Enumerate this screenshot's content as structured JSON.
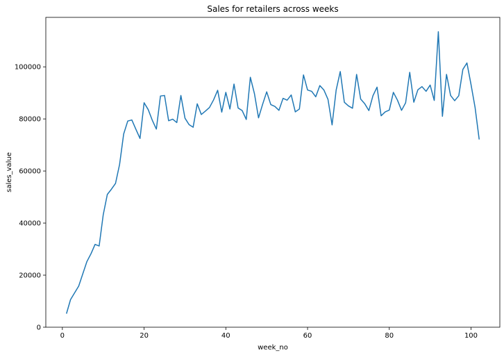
{
  "chart_data": {
    "type": "line",
    "title": "Sales for retailers across weeks",
    "xlabel": "week_no",
    "ylabel": "sales_value",
    "xlim": [
      -4.05,
      107.05
    ],
    "ylim": [
      0,
      119000
    ],
    "xticks": [
      0,
      20,
      40,
      60,
      80,
      100
    ],
    "yticks": [
      0,
      20000,
      40000,
      60000,
      80000,
      100000
    ],
    "grid": false,
    "line_color": "#1f77b4",
    "series": [
      {
        "x": [
          1,
          2,
          3,
          4,
          5,
          6,
          7,
          8,
          9,
          10,
          11,
          12,
          13,
          14,
          15,
          16,
          17,
          18,
          19,
          20,
          21,
          22,
          23,
          24,
          25,
          26,
          27,
          28,
          29,
          30,
          31,
          32,
          33,
          34,
          35,
          36,
          37,
          38,
          39,
          40,
          41,
          42,
          43,
          44,
          45,
          46,
          47,
          48,
          49,
          50,
          51,
          52,
          53,
          54,
          55,
          56,
          57,
          58,
          59,
          60,
          61,
          62,
          63,
          64,
          65,
          66,
          67,
          68,
          69,
          70,
          71,
          72,
          73,
          74,
          75,
          76,
          77,
          78,
          79,
          80,
          81,
          82,
          83,
          84,
          85,
          86,
          87,
          88,
          89,
          90,
          91,
          92,
          93,
          94,
          95,
          96,
          97,
          98,
          99,
          100,
          101,
          102
        ],
        "y": [
          5200,
          10600,
          13200,
          15800,
          20500,
          25200,
          28200,
          31800,
          31200,
          43200,
          51000,
          53000,
          55200,
          62500,
          74200,
          79200,
          79600,
          76000,
          72500,
          86200,
          83600,
          79500,
          76100,
          88800,
          89000,
          79300,
          79900,
          78600,
          89000,
          80300,
          77800,
          76800,
          85800,
          81700,
          83000,
          84400,
          87300,
          91000,
          82600,
          90200,
          83800,
          93400,
          84200,
          83200,
          79800,
          96000,
          89700,
          80400,
          85600,
          90400,
          85500,
          84800,
          83300,
          87900,
          87200,
          89200,
          82700,
          83800,
          96900,
          91100,
          90600,
          88500,
          92800,
          91100,
          87500,
          77700,
          91100,
          98200,
          86400,
          85000,
          84100,
          97100,
          87600,
          85800,
          83200,
          88900,
          92200,
          81200,
          82700,
          83400,
          90200,
          87200,
          83300,
          86200,
          97900,
          86400,
          91200,
          92400,
          90600,
          93000,
          87100,
          113500,
          81000,
          97100,
          89000,
          87000,
          88900,
          99000,
          101500,
          93200,
          84300,
          72100
        ]
      }
    ]
  }
}
